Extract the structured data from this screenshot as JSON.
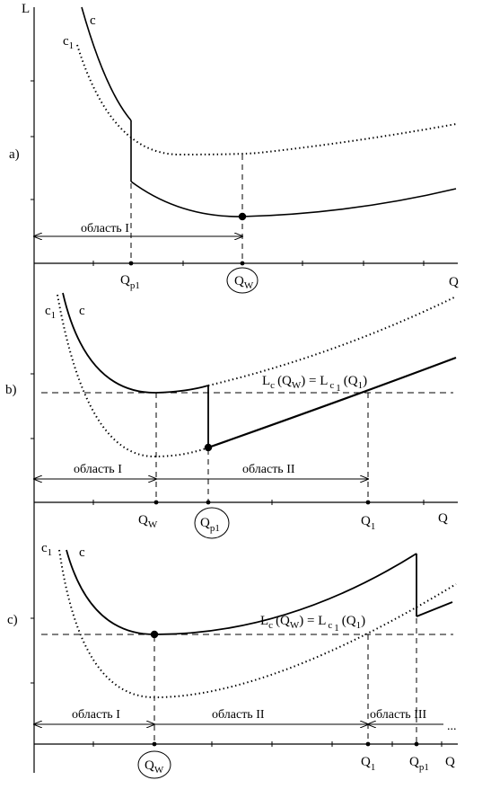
{
  "axes": {
    "y_label": "L",
    "x_label": "Q"
  },
  "panel_a": {
    "tag": "a)",
    "curve_c": "c",
    "curve_c1": "c",
    "curve_c1_sub": "1",
    "qp_main": "Q",
    "qp_sub": "p1",
    "qw_main": "Q",
    "qw_sub": "W",
    "region_1": "область  I"
  },
  "panel_b": {
    "tag": "b)",
    "curve_c": "c",
    "curve_c1": "c",
    "curve_c1_sub": "1",
    "equation": {
      "lhs": "L",
      "lhs_sub": "c",
      "lhs_arg": "(Q",
      "lhs_arg_sub": "W",
      "lhs_close": ") = L",
      "rhs_sub": "c",
      "rhs_sub2": "1",
      "rhs_arg": "(Q",
      "rhs_arg_sub": "1",
      "rhs_close": ")"
    },
    "qw_main": "Q",
    "qw_sub": "W",
    "qp_main": "Q",
    "qp_sub": "p1",
    "q1_main": "Q",
    "q1_sub": "1",
    "x_label": "Q",
    "region_1": "область I",
    "region_2": "область  II"
  },
  "panel_c": {
    "tag": "c)",
    "curve_c": "c",
    "curve_c1": "c",
    "curve_c1_sub": "1",
    "equation": {
      "lhs": "L",
      "lhs_sub": "c",
      "lhs_arg": "(Q",
      "lhs_arg_sub": "W",
      "lhs_close": ") = L",
      "rhs_sub": "c",
      "rhs_sub2": "1",
      "rhs_arg": "(Q",
      "rhs_arg_sub": "1",
      "rhs_close": ")"
    },
    "qw_main": "Q",
    "qw_sub": "W",
    "q1_main": "Q",
    "q1_sub": "1",
    "qp_main": "Q",
    "qp_sub": "p1",
    "x_label": "Q",
    "region_1": "область I",
    "region_2": "область  II",
    "region_3": "область  III",
    "ellipsis": "..."
  }
}
